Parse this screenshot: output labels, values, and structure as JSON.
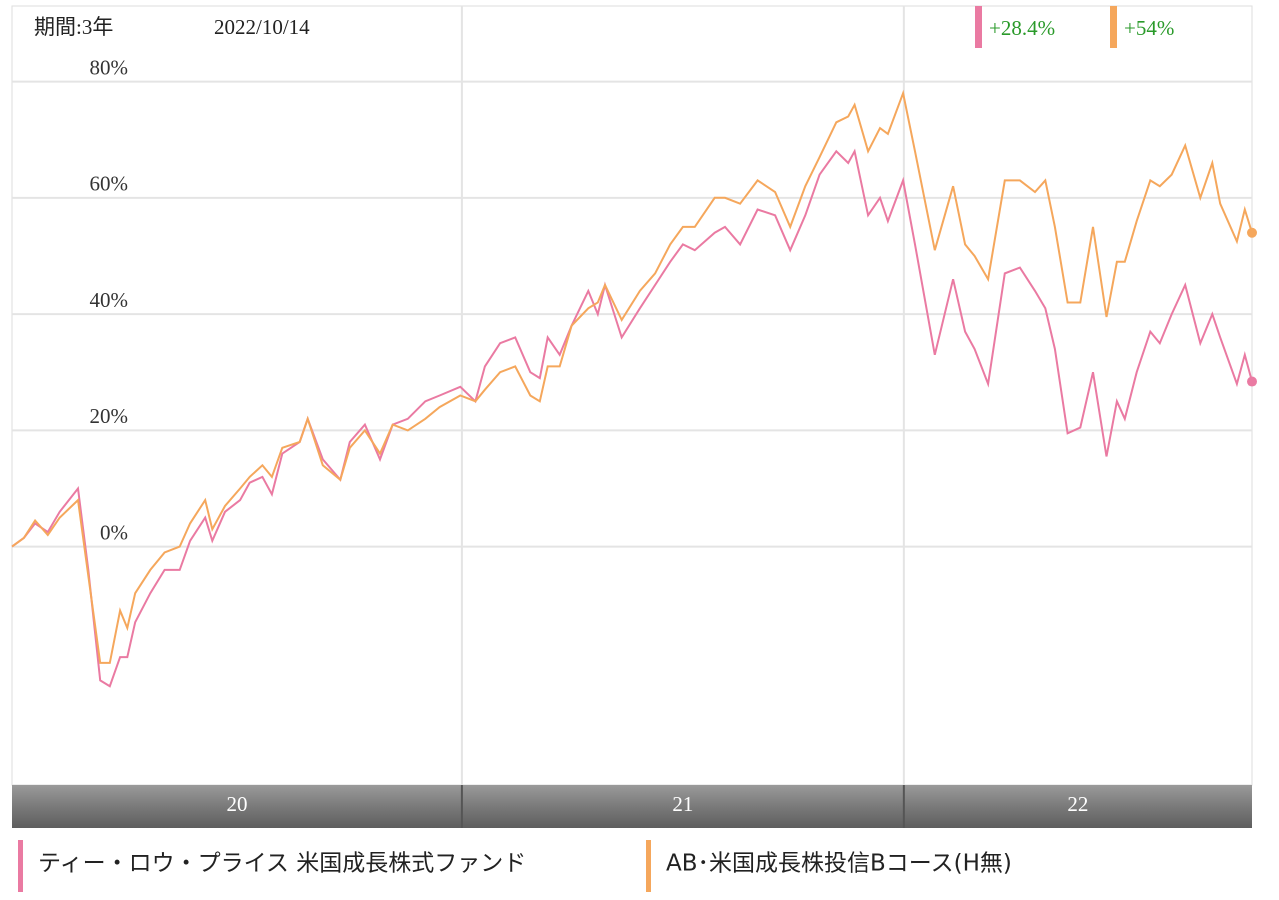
{
  "chart_data": {
    "type": "line",
    "period_label": "期間:3年",
    "date": "2022/10/14",
    "x": [
      0,
      1.5,
      2.9,
      4.5,
      6.0,
      8.3,
      9.6,
      11.1,
      12.3,
      13.6,
      14.5,
      15.5,
      17.4,
      19.2,
      21.1,
      22.4,
      24.3,
      25.2,
      26.8,
      28.7,
      29.9,
      31.5,
      32.7,
      34.0,
      36.2,
      37.2,
      39.1,
      41.3,
      42.5,
      44.4,
      46.3,
      47.9,
      49.8,
      52.0,
      53.8,
      56.4,
      58.3,
      59.5,
      61.4,
      63.3,
      65.2,
      66.4,
      67.4,
      68.9,
      70.4,
      72.5,
      73.7,
      74.6,
      76.7,
      79.0,
      80.9,
      82.8,
      84.4,
      85.9,
      88.4,
      89.7,
      91.6,
      93.8,
      96.0,
      97.9,
      99.8,
      101.6,
      103.7,
      105.2,
      106.0,
      107.7,
      109.2,
      110.2,
      112.1,
      113.6,
      116.1,
      118.4,
      119.9,
      121.1,
      122.8,
      124.9,
      126.8,
      128.7,
      130.0,
      131.2,
      132.8,
      134.4,
      136.0,
      137.7,
      139.0,
      140.0,
      141.5,
      143.2,
      144.4,
      145.9,
      147.6,
      149.5,
      151.0,
      152.0,
      154.1,
      155.1,
      156.0
    ],
    "xlim": [
      0,
      156
    ],
    "x_periods": [
      {
        "label": "20",
        "start": 0,
        "end": 56.6
      },
      {
        "label": "21",
        "start": 56.6,
        "end": 112.2
      },
      {
        "label": "22",
        "start": 112.2,
        "end": 156
      }
    ],
    "ylim": [
      -41,
      93
    ],
    "yticks": [
      {
        "value": 0,
        "label": "0%"
      },
      {
        "value": 20,
        "label": "20%"
      },
      {
        "value": 40,
        "label": "40%"
      },
      {
        "value": 60,
        "label": "60%"
      },
      {
        "value": 80,
        "label": "80%"
      }
    ],
    "grid": true,
    "series": [
      {
        "name": "ティー・ロウ・プライス 米国成長株式ファンド",
        "color": "#ea7aa2",
        "return_label": "+28.4%",
        "values": [
          0,
          1.5,
          4,
          2.5,
          6,
          10,
          -4,
          -23,
          -24,
          -19,
          -19,
          -13,
          -8,
          -4,
          -4,
          1,
          5,
          1,
          6,
          8,
          11,
          12,
          9,
          16,
          18,
          22,
          15,
          11.5,
          18,
          21,
          15,
          21,
          22,
          25,
          26,
          27.5,
          25,
          31,
          35,
          36,
          30,
          29,
          36,
          33,
          38,
          44,
          40,
          45,
          36,
          41,
          45,
          49,
          52,
          51,
          54,
          55,
          52,
          58,
          57,
          51,
          57,
          64,
          68,
          66,
          68,
          57,
          60,
          56,
          63,
          52,
          33,
          46,
          37,
          34,
          28,
          47,
          48,
          44,
          41,
          34,
          19.5,
          20.5,
          30,
          15.5,
          25,
          22,
          30,
          37,
          35,
          40,
          45,
          35,
          40,
          36,
          28,
          33,
          28.4
        ]
      },
      {
        "name": "AB･米国成長株投信Bコース(H無)",
        "color": "#f5a75c",
        "return_label": "+54%",
        "values": [
          0,
          1.5,
          4.5,
          2,
          5,
          8,
          -5,
          -20,
          -20,
          -11,
          -14,
          -8,
          -4,
          -1,
          0,
          4,
          8,
          3,
          7,
          10,
          12,
          14,
          12,
          17,
          18,
          22,
          14,
          11.5,
          17,
          20,
          16,
          21,
          20,
          22,
          24,
          26,
          25,
          27,
          30,
          31,
          26,
          25,
          31,
          31,
          38,
          41,
          42,
          45,
          39,
          44,
          47,
          52,
          55,
          55,
          60,
          60,
          59,
          63,
          61,
          55,
          62,
          67,
          73,
          74,
          76,
          68,
          72,
          71,
          78,
          68,
          51,
          62,
          52,
          50,
          46,
          63,
          63,
          61,
          63,
          55,
          42,
          42,
          55,
          39.5,
          49,
          49,
          56,
          63,
          62,
          64,
          69,
          60,
          66,
          59,
          52.5,
          58,
          54
        ]
      }
    ]
  }
}
